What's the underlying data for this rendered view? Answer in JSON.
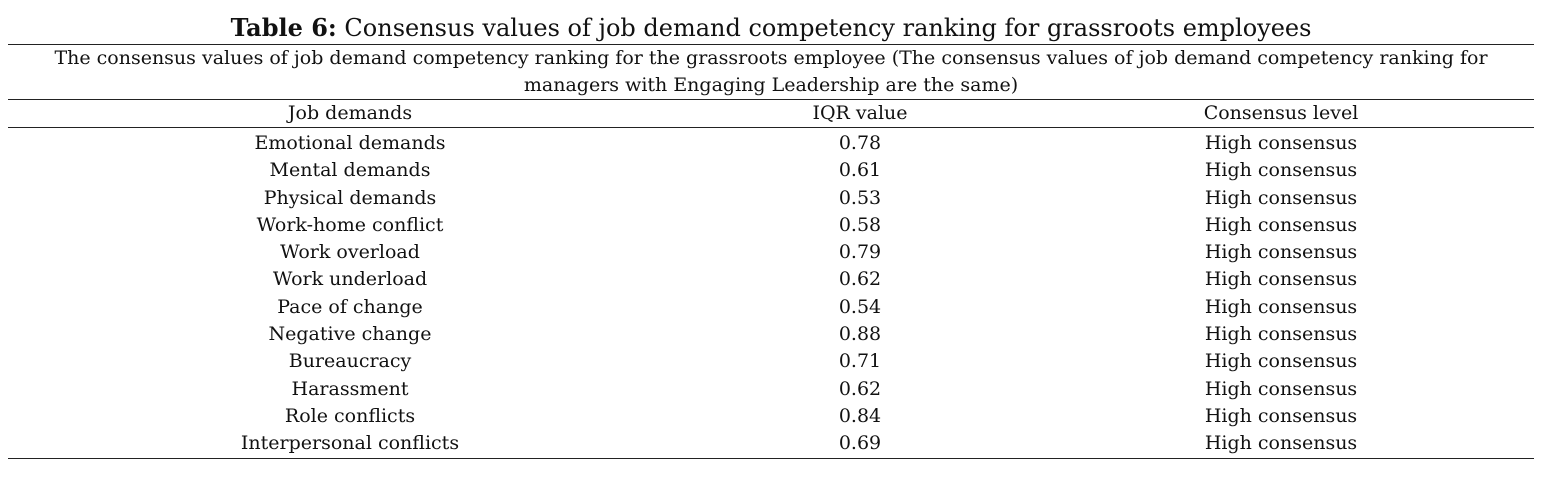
{
  "title": {
    "label": "Table 6:",
    "text": "Consensus values of job demand competency ranking for grassroots employees"
  },
  "caption": "The consensus values of job demand competency ranking for the grassroots employee (The consensus values of job demand competency ranking for managers with Engaging Leadership are the same)",
  "table": {
    "headers": [
      "Job demands",
      "IQR value",
      "Consensus level"
    ],
    "rows": [
      [
        "Emotional demands",
        "0.78",
        "High consensus"
      ],
      [
        "Mental demands",
        "0.61",
        "High consensus"
      ],
      [
        "Physical demands",
        "0.53",
        "High consensus"
      ],
      [
        "Work-home conflict",
        "0.58",
        "High consensus"
      ],
      [
        "Work overload",
        "0.79",
        "High consensus"
      ],
      [
        "Work underload",
        "0.62",
        "High consensus"
      ],
      [
        "Pace of change",
        "0.54",
        "High consensus"
      ],
      [
        "Negative change",
        "0.88",
        "High consensus"
      ],
      [
        "Bureaucracy",
        "0.71",
        "High consensus"
      ],
      [
        "Harassment",
        "0.62",
        "High consensus"
      ],
      [
        "Role conflicts",
        "0.84",
        "High consensus"
      ],
      [
        "Interpersonal conflicts",
        "0.69",
        "High consensus"
      ]
    ]
  }
}
